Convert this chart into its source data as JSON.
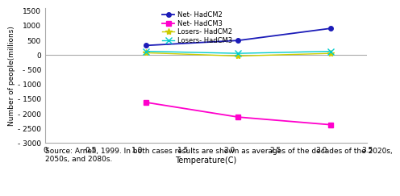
{
  "series": [
    {
      "label": "Net- HadCM2",
      "x": [
        1.1,
        2.1,
        3.1
      ],
      "y": [
        320,
        490,
        900
      ],
      "color": "#1C1CB8",
      "marker": "o",
      "markersize": 4,
      "linewidth": 1.3
    },
    {
      "label": "Net- HadCM3",
      "x": [
        1.1,
        2.1,
        3.1
      ],
      "y": [
        -1620,
        -2120,
        -2380
      ],
      "color": "#FF00CC",
      "marker": "s",
      "markersize": 4,
      "linewidth": 1.3
    },
    {
      "label": "Losers- HadCM2",
      "x": [
        1.1,
        2.1,
        3.1
      ],
      "y": [
        70,
        -40,
        50
      ],
      "color": "#CCCC00",
      "marker": "*",
      "markersize": 6,
      "linewidth": 1.0
    },
    {
      "label": "Losers- HadCM3",
      "x": [
        1.1,
        2.1,
        3.1
      ],
      "y": [
        120,
        50,
        120
      ],
      "color": "#00CCCC",
      "marker": "x",
      "markersize": 6,
      "linewidth": 1.0
    }
  ],
  "xlim": [
    0,
    3.5
  ],
  "ylim": [
    -3000,
    1600
  ],
  "xticks": [
    0,
    0.5,
    1.0,
    1.5,
    2.0,
    2.5,
    3.0,
    3.5
  ],
  "yticks": [
    -3000,
    -2500,
    -2000,
    -1500,
    -1000,
    -500,
    0,
    500,
    1000,
    1500
  ],
  "xlabel": "Temperature(C)",
  "ylabel": "Number of people(millions)",
  "source_text": "Source: Arnell, 1999. In both cases results are shown as averages of the decades of the 2020s,\n2050s, and 2080s.",
  "bg_color": "#ffffff",
  "spine_color": "#aaaaaa",
  "hline_color": "#aaaaaa",
  "tick_label_size": 6.5,
  "xlabel_size": 7,
  "ylabel_size": 6.5,
  "legend_fontsize": 6.0,
  "source_fontsize": 6.5
}
